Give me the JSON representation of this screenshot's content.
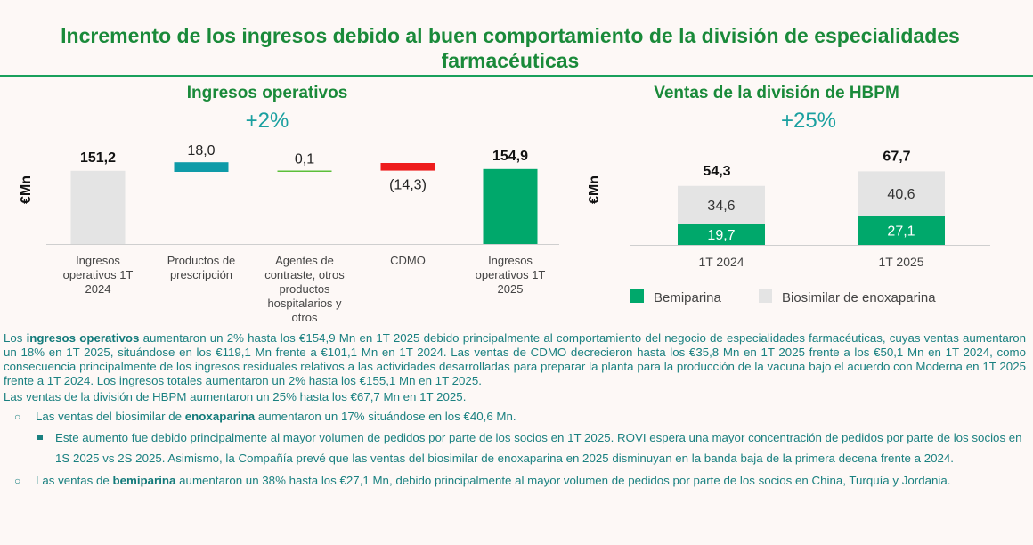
{
  "title": "Incremento de los ingresos debido al buen comportamiento de la división de especialidades farmacéuticas",
  "colors": {
    "green": "#00a86b",
    "gray": "#e4e4e4",
    "teal": "#0f9ba8",
    "lime": "#5cbf3a",
    "red": "#ee1c1c",
    "title_green": "#1a8a3a",
    "text_teal": "#1a8080"
  },
  "chart_data": [
    {
      "type": "bar",
      "subtype": "waterfall",
      "title": "Ingresos operativos",
      "subtitle": "+2%",
      "ylabel": "€Mn",
      "categories": [
        "Ingresos operativos 1T 2024",
        "Productos de prescripción",
        "Agentes de contraste, otros productos hospitalarios y otros",
        "CDMO",
        "Ingresos operativos 1T 2025"
      ],
      "values": [
        151.2,
        18.0,
        0.1,
        -14.3,
        154.9
      ],
      "value_labels": [
        "151,2",
        "18,0",
        "0,1",
        "(14,3)",
        "154,9"
      ],
      "category_labels": [
        [
          "Ingresos",
          "operativos 1T",
          "2024"
        ],
        [
          "Productos de",
          "prescripción"
        ],
        [
          "Agentes de",
          "contraste, otros",
          "productos",
          "hospitalarios y",
          "otros"
        ],
        [
          "CDMO"
        ],
        [
          "Ingresos",
          "operativos 1T",
          "2025"
        ]
      ],
      "bar_colors": [
        "#e4e4e4",
        "#0f9ba8",
        "#5cbf3a",
        "#ee1c1c",
        "#00a86b"
      ]
    },
    {
      "type": "bar",
      "subtype": "stacked",
      "title": "Ventas de la división de HBPM",
      "subtitle": "+25%",
      "ylabel": "€Mn",
      "categories": [
        "1T 2024",
        "1T 2025"
      ],
      "totals": [
        54.3,
        67.7
      ],
      "total_labels": [
        "54,3",
        "67,7"
      ],
      "series": [
        {
          "name": "Bemiparina",
          "values": [
            19.7,
            27.1
          ],
          "labels": [
            "19,7",
            "27,1"
          ],
          "color": "#00a86b"
        },
        {
          "name": "Biosimilar de enoxaparina",
          "values": [
            34.6,
            40.6
          ],
          "labels": [
            "34,6",
            "40,6"
          ],
          "color": "#e4e4e4"
        }
      ],
      "legend_position": "bottom"
    }
  ],
  "text": {
    "p1_pre": "Los ",
    "p1_bold": "ingresos operativos",
    "p1_post": " aumentaron un 2% hasta los €154,9 Mn en 1T 2025 debido principalmente al comportamiento del negocio de especialidades farmacéuticas, cuyas ventas aumentaron un 18% en 1T 2025, situándose en los €119,1 Mn frente a €101,1 Mn en 1T 2024. Las ventas de CDMO decrecieron hasta los €35,8 Mn en 1T 2025 frente a los €50,1 Mn en 1T 2024, como consecuencia principalmente de los ingresos residuales relativos a las actividades desarrolladas para preparar la planta para la producción de la vacuna bajo el acuerdo con Moderna en 1T 2025 frente a 1T 2024. Los ingresos totales aumentaron un 2% hasta los €155,1 Mn en 1T 2025.",
    "p2": "Las ventas de la división de HBPM aumentaron un 25% hasta los €67,7 Mn en 1T 2025.",
    "b1_pre": "Las ventas del biosimilar de ",
    "b1_bold": "enoxaparina",
    "b1_post": " aumentaron un 17% situándose en los €40,6 Mn.",
    "sb1": "Este aumento fue debido principalmente al mayor volumen de pedidos por parte de los socios en 1T 2025. ROVI espera una mayor concentración de pedidos por parte de los socios en 1S 2025 vs 2S 2025. Asimismo, la Compañía prevé que las ventas del biosimilar de enoxaparina en 2025 disminuyan en la banda baja de la primera decena frente a 2024.",
    "b2_pre": "Las ventas de ",
    "b2_bold": "bemiparina",
    "b2_post": " aumentaron un 38% hasta los €27,1 Mn, debido principalmente al mayor volumen de pedidos por parte de los socios en China, Turquía y Jordania."
  }
}
